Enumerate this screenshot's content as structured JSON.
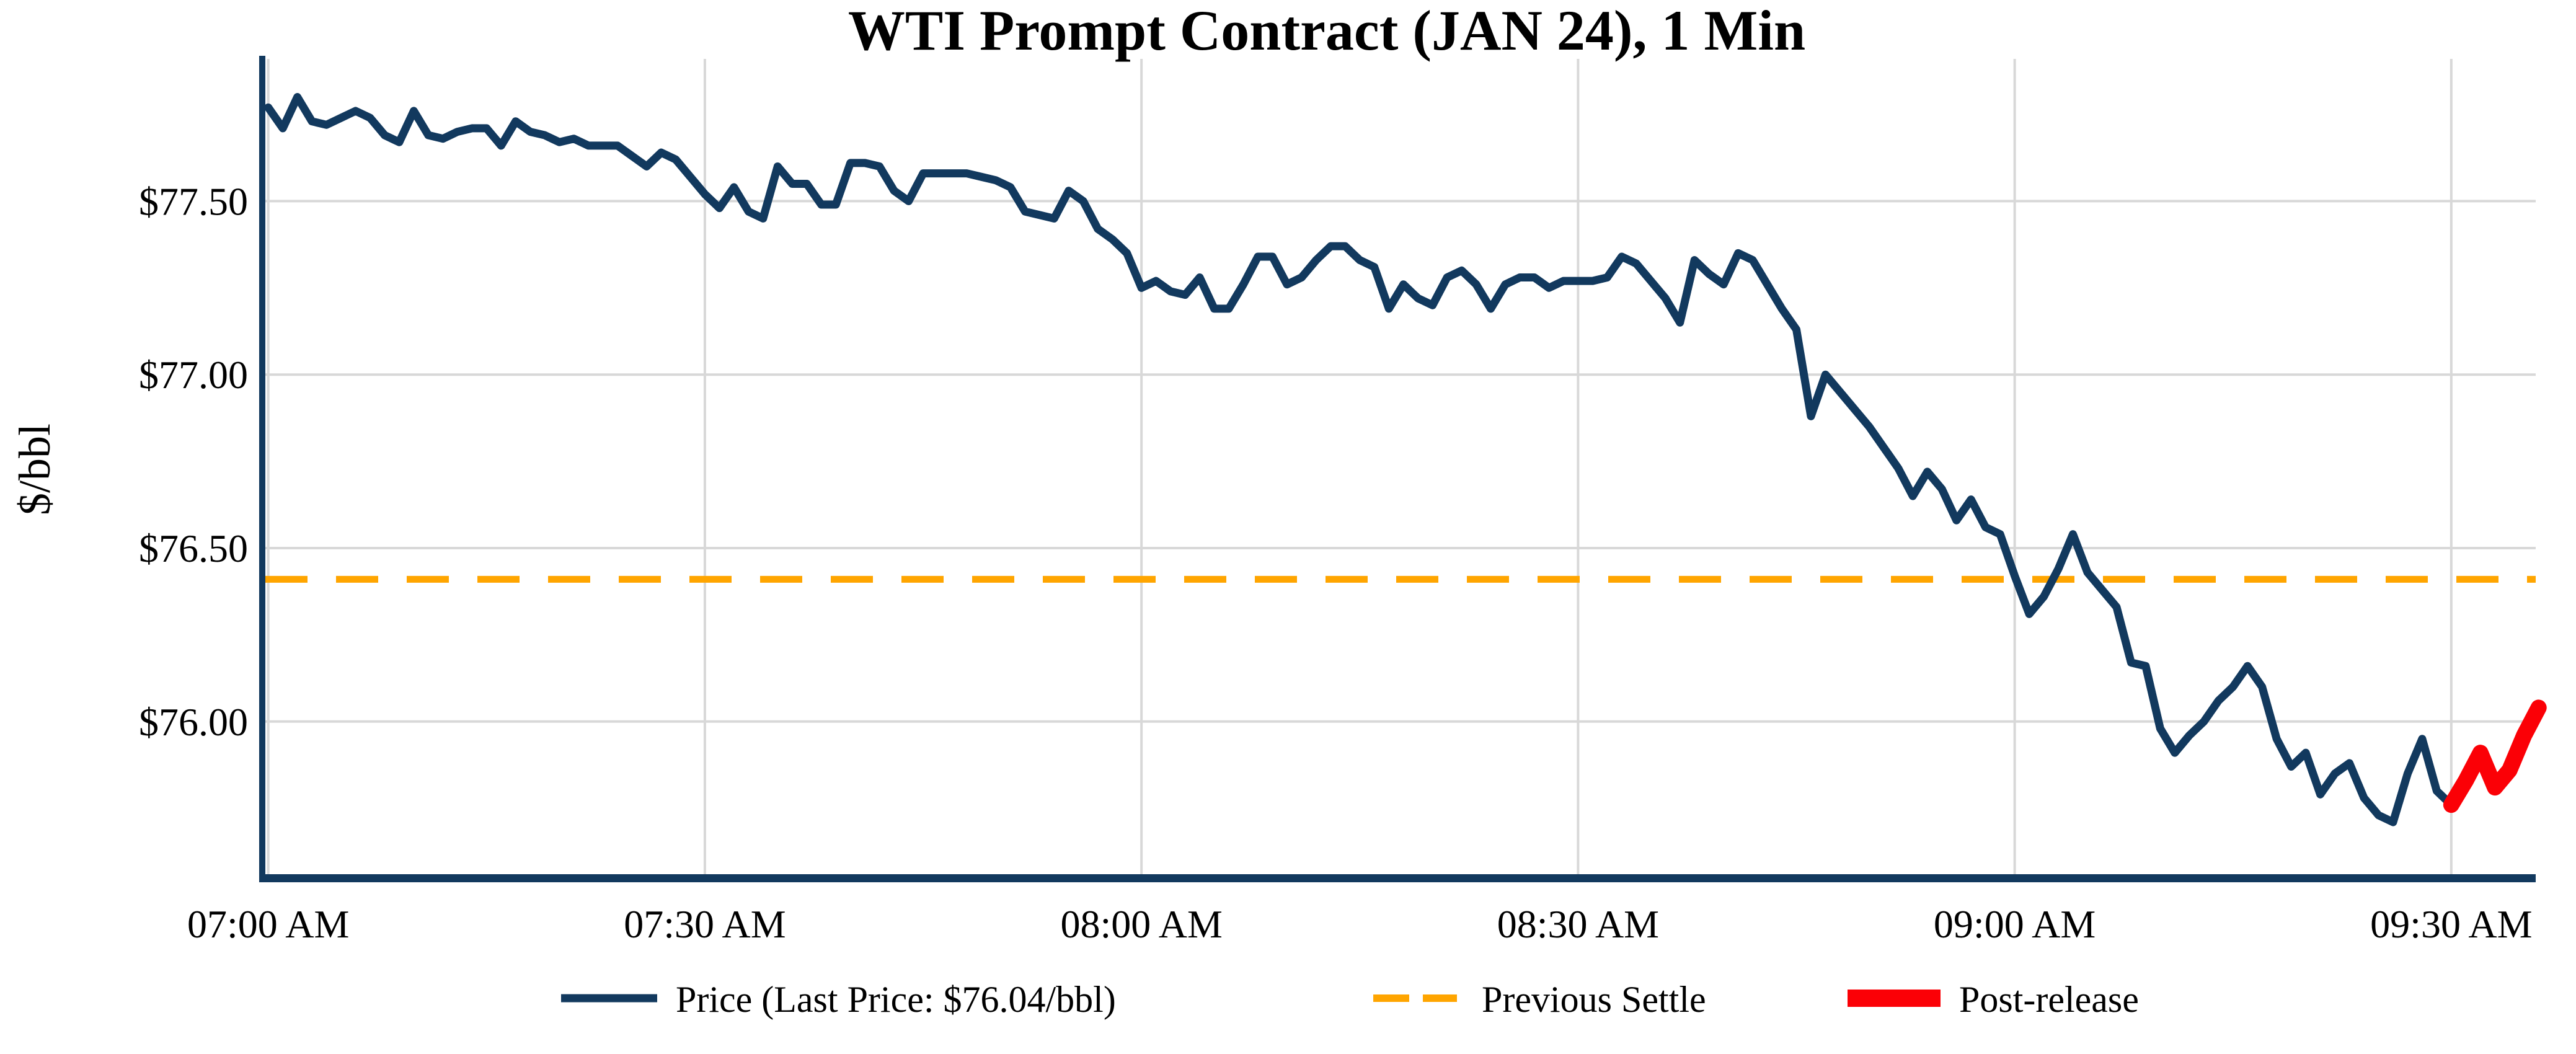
{
  "chart_data": {
    "type": "line",
    "title": "WTI Prompt Contract (JAN 24), 1 Min",
    "xlabel": "",
    "ylabel": "$/bbl",
    "grid": true,
    "legend_position": "bottom",
    "x_tick_labels": [
      "07:00 AM",
      "07:30 AM",
      "08:00 AM",
      "08:30 AM",
      "09:00 AM",
      "09:30 AM"
    ],
    "x_tick_minutes": [
      0,
      30,
      60,
      90,
      120,
      150
    ],
    "y_tick_labels": [
      "$77.50",
      "$77.00",
      "$76.50",
      "$76.00"
    ],
    "y_tick_values": [
      77.5,
      77.0,
      76.5,
      76.0
    ],
    "xlim_minutes": [
      -0.2,
      155.8
    ],
    "ylim": [
      75.56,
      77.91
    ],
    "previous_settle": 76.41,
    "last_price_label": "$76.04/bbl",
    "colors": {
      "price": "#12395e",
      "settle": "#ffa500",
      "post_release": "#fb0006",
      "axis": "#12395e",
      "grid": "#d8d8d8"
    },
    "series": [
      {
        "name": "Price (Last Price: $76.04/bbl)",
        "type": "line",
        "color": "#12395e",
        "start_minute": 0,
        "interval_min": 1,
        "values": [
          77.77,
          77.71,
          77.8,
          77.73,
          77.72,
          77.74,
          77.76,
          77.74,
          77.69,
          77.67,
          77.76,
          77.69,
          77.68,
          77.7,
          77.71,
          77.71,
          77.66,
          77.73,
          77.7,
          77.69,
          77.67,
          77.68,
          77.66,
          77.66,
          77.66,
          77.63,
          77.6,
          77.64,
          77.62,
          77.57,
          77.52,
          77.48,
          77.54,
          77.47,
          77.45,
          77.6,
          77.55,
          77.55,
          77.49,
          77.49,
          77.61,
          77.61,
          77.6,
          77.53,
          77.5,
          77.58,
          77.58,
          77.58,
          77.58,
          77.57,
          77.56,
          77.54,
          77.47,
          77.46,
          77.45,
          77.53,
          77.5,
          77.42,
          77.39,
          77.35,
          77.25,
          77.27,
          77.24,
          77.23,
          77.28,
          77.19,
          77.19,
          77.26,
          77.34,
          77.34,
          77.26,
          77.28,
          77.33,
          77.37,
          77.37,
          77.33,
          77.31,
          77.19,
          77.26,
          77.22,
          77.2,
          77.28,
          77.3,
          77.26,
          77.19,
          77.26,
          77.28,
          77.28,
          77.25,
          77.27,
          77.27,
          77.27,
          77.28,
          77.34,
          77.32,
          77.27,
          77.22,
          77.15,
          77.33,
          77.29,
          77.26,
          77.35,
          77.33,
          77.26,
          77.19,
          77.13,
          76.88,
          77.0,
          76.95,
          76.9,
          76.85,
          76.79,
          76.73,
          76.65,
          76.72,
          76.67,
          76.58,
          76.64,
          76.56,
          76.54,
          76.42,
          76.31,
          76.36,
          76.44,
          76.54,
          76.43,
          76.38,
          76.33,
          76.17,
          76.16,
          75.98,
          75.91,
          75.96,
          76.0,
          76.06,
          76.1,
          76.16,
          76.1,
          75.95,
          75.87,
          75.91,
          75.79,
          75.85,
          75.88,
          75.78,
          75.73,
          75.71,
          75.85,
          75.95,
          75.8,
          75.76
        ]
      },
      {
        "name": "Previous Settle",
        "type": "dashed-hline",
        "color": "#ffa500",
        "value": 76.41
      },
      {
        "name": "Post-release",
        "type": "line",
        "color": "#fb0006",
        "start_minute": 150,
        "interval_min": 1,
        "values": [
          75.76,
          75.83,
          75.91,
          75.81,
          75.86,
          75.96,
          76.04
        ]
      }
    ]
  }
}
